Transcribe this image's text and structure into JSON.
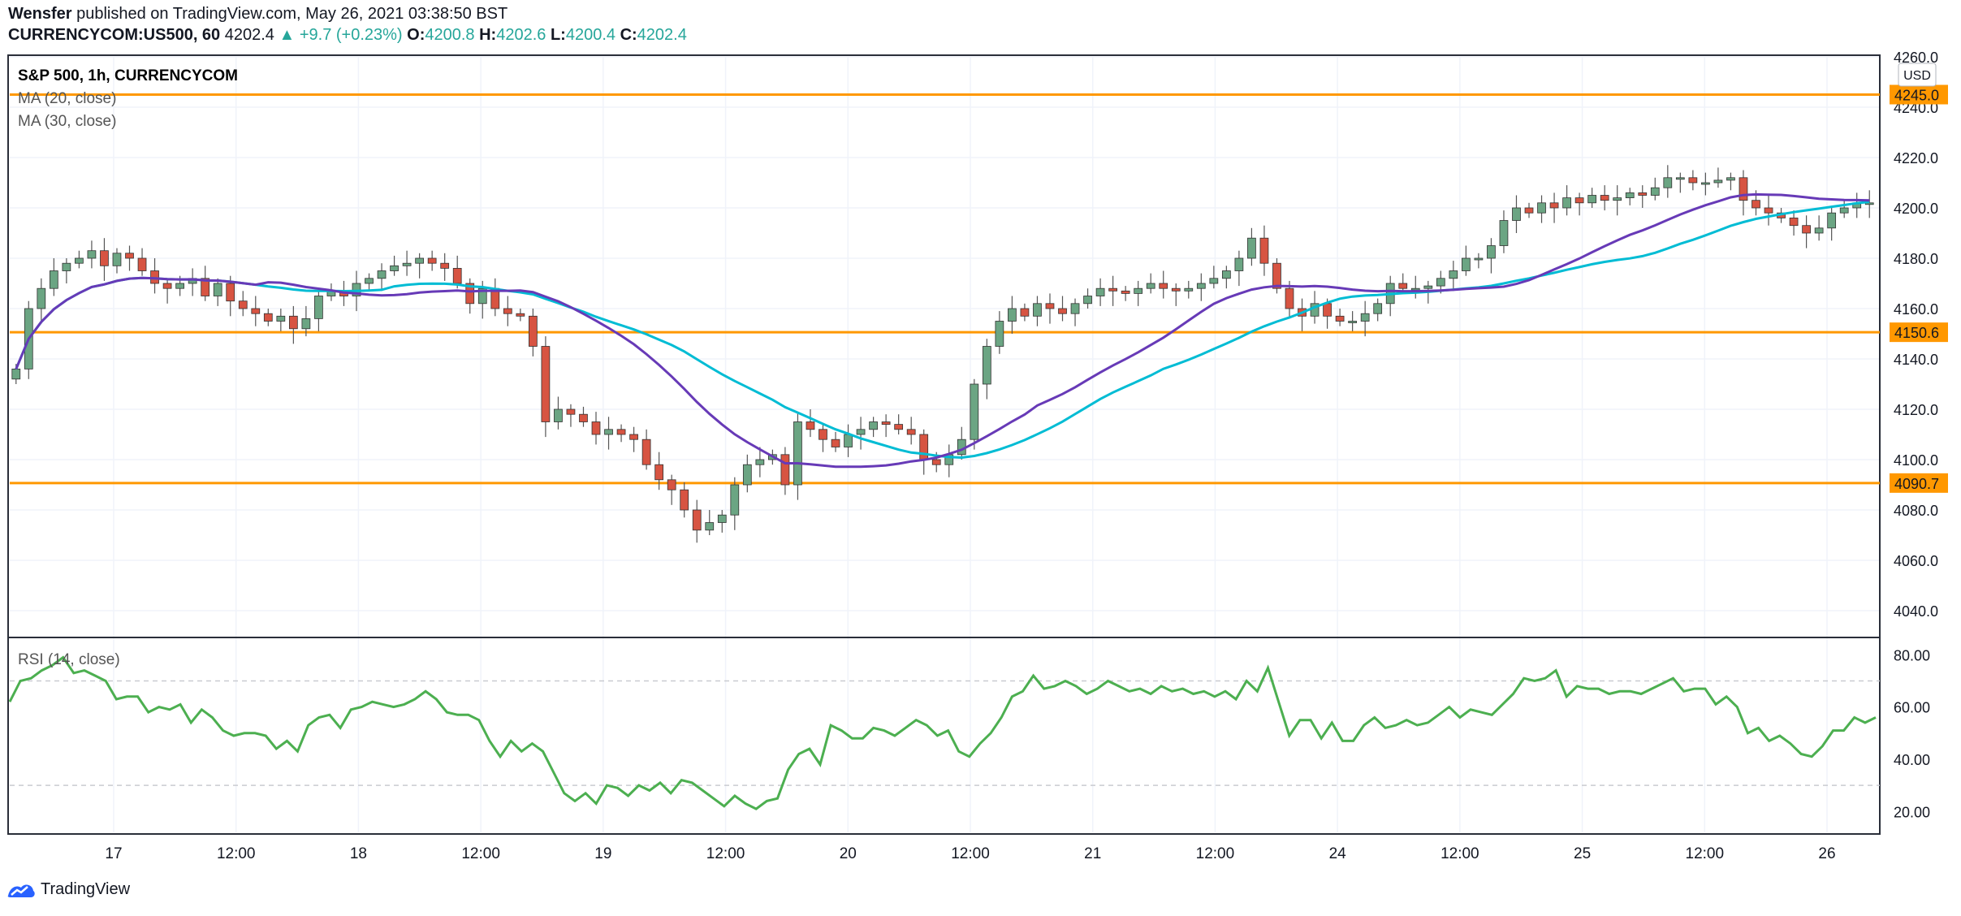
{
  "header": {
    "author": "Wensfer",
    "published_text": "published on TradingView.com, May 26, 2021 03:38:50 BST",
    "symbol": "CURRENCYCOM:US500, 60",
    "last_price": "4202.4",
    "change_arrow": "▲",
    "change": "+9.7 (+0.23%)",
    "o_label": "O:",
    "o_value": "4200.8",
    "h_label": "H:",
    "h_value": "4202.6",
    "l_label": "L:",
    "l_value": "4200.4",
    "c_label": "C:",
    "c_value": "4202.4"
  },
  "footer": {
    "brand": "TradingView",
    "logo_icon": "tradingview-logo-icon"
  },
  "colors": {
    "up": "#6ba583",
    "down": "#d75442",
    "ma20": "#673ab7",
    "ma30": "#00bcd4",
    "rsi": "#4caf50",
    "hline": "#ff9800",
    "grid": "#f0f3fa",
    "axis_text": "#787b86"
  },
  "chart_data": {
    "type": "candlestick",
    "title": "S&P 500, 1h, CURRENCYCOM",
    "currency": "USD",
    "x_tick_labels": [
      "17",
      "12:00",
      "18",
      "12:00",
      "19",
      "12:00",
      "20",
      "12:00",
      "21",
      "12:00",
      "24",
      "12:00",
      "25",
      "12:00",
      "26"
    ],
    "price_axis": {
      "ylim": [
        4030,
        4260
      ],
      "ticks": [
        4040,
        4060,
        4080,
        4100,
        4120,
        4140,
        4160,
        4180,
        4200,
        4220,
        4240,
        4260
      ]
    },
    "price_tick_labels": [
      "4040.0",
      "4060.0",
      "4080.0",
      "4100.0",
      "4120.0",
      "4140.0",
      "4160.0",
      "4180.0",
      "4200.0",
      "4220.0",
      "4240.0",
      "4260.0"
    ],
    "horizontal_lines": [
      {
        "value": 4245.0,
        "label": "4245.0"
      },
      {
        "value": 4150.6,
        "label": "4150.6"
      },
      {
        "value": 4090.7,
        "label": "4090.7"
      }
    ],
    "price_close": [
      4136,
      4160,
      4168,
      4175,
      4178,
      4180,
      4183,
      4177,
      4182,
      4180,
      4175,
      4170,
      4168,
      4170,
      4172,
      4165,
      4170,
      4163,
      4160,
      4158,
      4155,
      4157,
      4152,
      4156,
      4165,
      4167,
      4165,
      4170,
      4172,
      4175,
      4177,
      4178,
      4180,
      4178,
      4176,
      4170,
      4162,
      4168,
      4160,
      4158,
      4157,
      4145,
      4115,
      4120,
      4118,
      4115,
      4110,
      4112,
      4110,
      4108,
      4098,
      4092,
      4088,
      4080,
      4072,
      4075,
      4078,
      4090,
      4098,
      4100,
      4102,
      4090,
      4115,
      4112,
      4108,
      4105,
      4110,
      4112,
      4115,
      4114,
      4112,
      4110,
      4100,
      4098,
      4102,
      4108,
      4130,
      4145,
      4155,
      4160,
      4157,
      4162,
      4160,
      4158,
      4162,
      4165,
      4168,
      4167,
      4166,
      4168,
      4170,
      4168,
      4167,
      4168,
      4170,
      4172,
      4175,
      4180,
      4188,
      4178,
      4168,
      4160,
      4157,
      4162,
      4157,
      4155,
      4155,
      4158,
      4162,
      4170,
      4168,
      4168,
      4169,
      4172,
      4175,
      4180,
      4180,
      4185,
      4195,
      4200,
      4198,
      4202,
      4200,
      4204,
      4202,
      4205,
      4203,
      4204,
      4206,
      4205,
      4208,
      4212,
      4212,
      4210,
      4210,
      4211,
      4212,
      4203,
      4200,
      4198,
      4196,
      4193,
      4190,
      4192,
      4198,
      4200,
      4202,
      4202
    ],
    "rsi": {
      "label": "RSI (14, close)",
      "ylim": [
        12,
        86
      ],
      "levels": [
        70,
        30
      ],
      "tick_labels": [
        "20.00",
        "40.00",
        "60.00",
        "80.00"
      ],
      "values": [
        62,
        70,
        71,
        74,
        76,
        79,
        73,
        74,
        72,
        70,
        63,
        64,
        64,
        58,
        60,
        59,
        61,
        54,
        59,
        56,
        51,
        49,
        50,
        50,
        49,
        44,
        47,
        43,
        53,
        56,
        57,
        52,
        59,
        60,
        62,
        61,
        60,
        61,
        63,
        66,
        63,
        58,
        57,
        57,
        55,
        47,
        41,
        47,
        43,
        46,
        43,
        35,
        27,
        24,
        27,
        23,
        30,
        29,
        26,
        30,
        28,
        31,
        27,
        32,
        31,
        28,
        25,
        22,
        26,
        23,
        21,
        24,
        25,
        36,
        42,
        44,
        38,
        53,
        51,
        48,
        48,
        52,
        51,
        49,
        52,
        55,
        53,
        49,
        51,
        43,
        41,
        46,
        50,
        56,
        64,
        66,
        72,
        67,
        68,
        70,
        68,
        65,
        67,
        70,
        68,
        66,
        67,
        65,
        68,
        66,
        67,
        65,
        66,
        64,
        66,
        63,
        70,
        66,
        75,
        62,
        49,
        55,
        55,
        48,
        54,
        47,
        47,
        53,
        56,
        52,
        53,
        55,
        53,
        54,
        57,
        60,
        56,
        59,
        58,
        57,
        61,
        65,
        71,
        70,
        71,
        74,
        64,
        68,
        67,
        67,
        65,
        66,
        66,
        65,
        67,
        69,
        71,
        66,
        67,
        67,
        61,
        64,
        60,
        50,
        52,
        47,
        49,
        46,
        42,
        41,
        45,
        51,
        51,
        56,
        54,
        56
      ]
    }
  }
}
